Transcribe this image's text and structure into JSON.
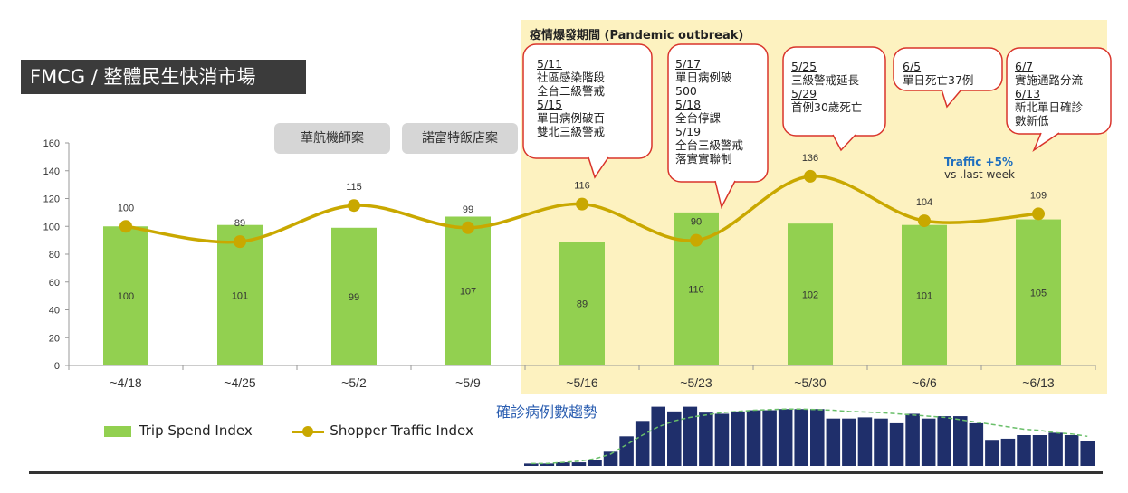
{
  "page_title": "FMCG / 整體民生快消市場",
  "pandemic": {
    "title": "疫情爆發期間 (Pandemic outbreak)",
    "callouts": [
      {
        "lines": [
          {
            "t": "5/11",
            "u": true
          },
          {
            "t": "社區感染階段"
          },
          {
            "t": "全台二級警戒"
          },
          {
            "t": "5/15",
            "u": true
          },
          {
            "t": "單日病例破百"
          },
          {
            "t": "雙北三級警戒"
          }
        ]
      },
      {
        "lines": [
          {
            "t": "5/17",
            "u": true
          },
          {
            "t": "單日病例破"
          },
          {
            "t": "500"
          },
          {
            "t": "5/18",
            "u": true
          },
          {
            "t": "全台停課"
          },
          {
            "t": "5/19",
            "u": true
          },
          {
            "t": "全台三級警戒"
          },
          {
            "t": "落實實聯制"
          }
        ]
      },
      {
        "lines": [
          {
            "t": "5/25",
            "u": true
          },
          {
            "t": "三級警戒延長"
          },
          {
            "t": "5/29",
            "u": true
          },
          {
            "t": "首例30歲死亡"
          }
        ]
      },
      {
        "lines": [
          {
            "t": "6/5",
            "u": true
          },
          {
            "t": "單日死亡37例"
          }
        ]
      },
      {
        "lines": [
          {
            "t": "6/7",
            "u": true
          },
          {
            "t": "實施通路分流"
          },
          {
            "t": "6/13",
            "u": true
          },
          {
            "t": "新北單日確診"
          },
          {
            "t": "數新低"
          }
        ]
      }
    ]
  },
  "event_annotations": [
    "華航機師案",
    "諾富特飯店案"
  ],
  "traffic_note": {
    "line1": "Traffic +5%",
    "line2": "vs .last week"
  },
  "legend": {
    "bar": "Trip Spend Index",
    "line": "Shopper Traffic Index"
  },
  "covid_trend_label": "確診病例數趨勢",
  "colors": {
    "bar": "#92d050",
    "line": "#c9a800",
    "highlight": "#fdf2c0",
    "callout_border": "#d9342b"
  },
  "chart_data": {
    "type": "bar",
    "categories": [
      "~4/18",
      "~4/25",
      "~5/2",
      "~5/9",
      "~5/16",
      "~5/23",
      "~5/30",
      "~6/6",
      "~6/13"
    ],
    "series": [
      {
        "name": "Trip Spend Index",
        "type": "bar",
        "values": [
          100,
          101,
          99,
          107,
          89,
          110,
          102,
          101,
          105
        ]
      },
      {
        "name": "Shopper Traffic Index",
        "type": "line",
        "values": [
          100,
          89,
          115,
          99,
          116,
          90,
          136,
          104,
          109
        ]
      }
    ],
    "ylim": [
      0,
      160
    ],
    "yticks": [
      0,
      20,
      40,
      60,
      80,
      100,
      120,
      140,
      160
    ],
    "legend_position": "bottom-left"
  },
  "covid_trend": {
    "type": "bar",
    "values": [
      2,
      2,
      3,
      3,
      5,
      12,
      25,
      38,
      50,
      46,
      50,
      45,
      44,
      46,
      47,
      47,
      48,
      48,
      48,
      40,
      40,
      41,
      40,
      36,
      44,
      40,
      42,
      42,
      36,
      22,
      23,
      26,
      26,
      28,
      26,
      21
    ],
    "trend": [
      2,
      2,
      3,
      4,
      6,
      10,
      18,
      26,
      33,
      38,
      41,
      43,
      45,
      46,
      47,
      47.5,
      48,
      48,
      47.5,
      47,
      46,
      45.5,
      45,
      44,
      43,
      42,
      41,
      39,
      37,
      35,
      33,
      31,
      30,
      28,
      27,
      25
    ],
    "ymax": 52
  }
}
